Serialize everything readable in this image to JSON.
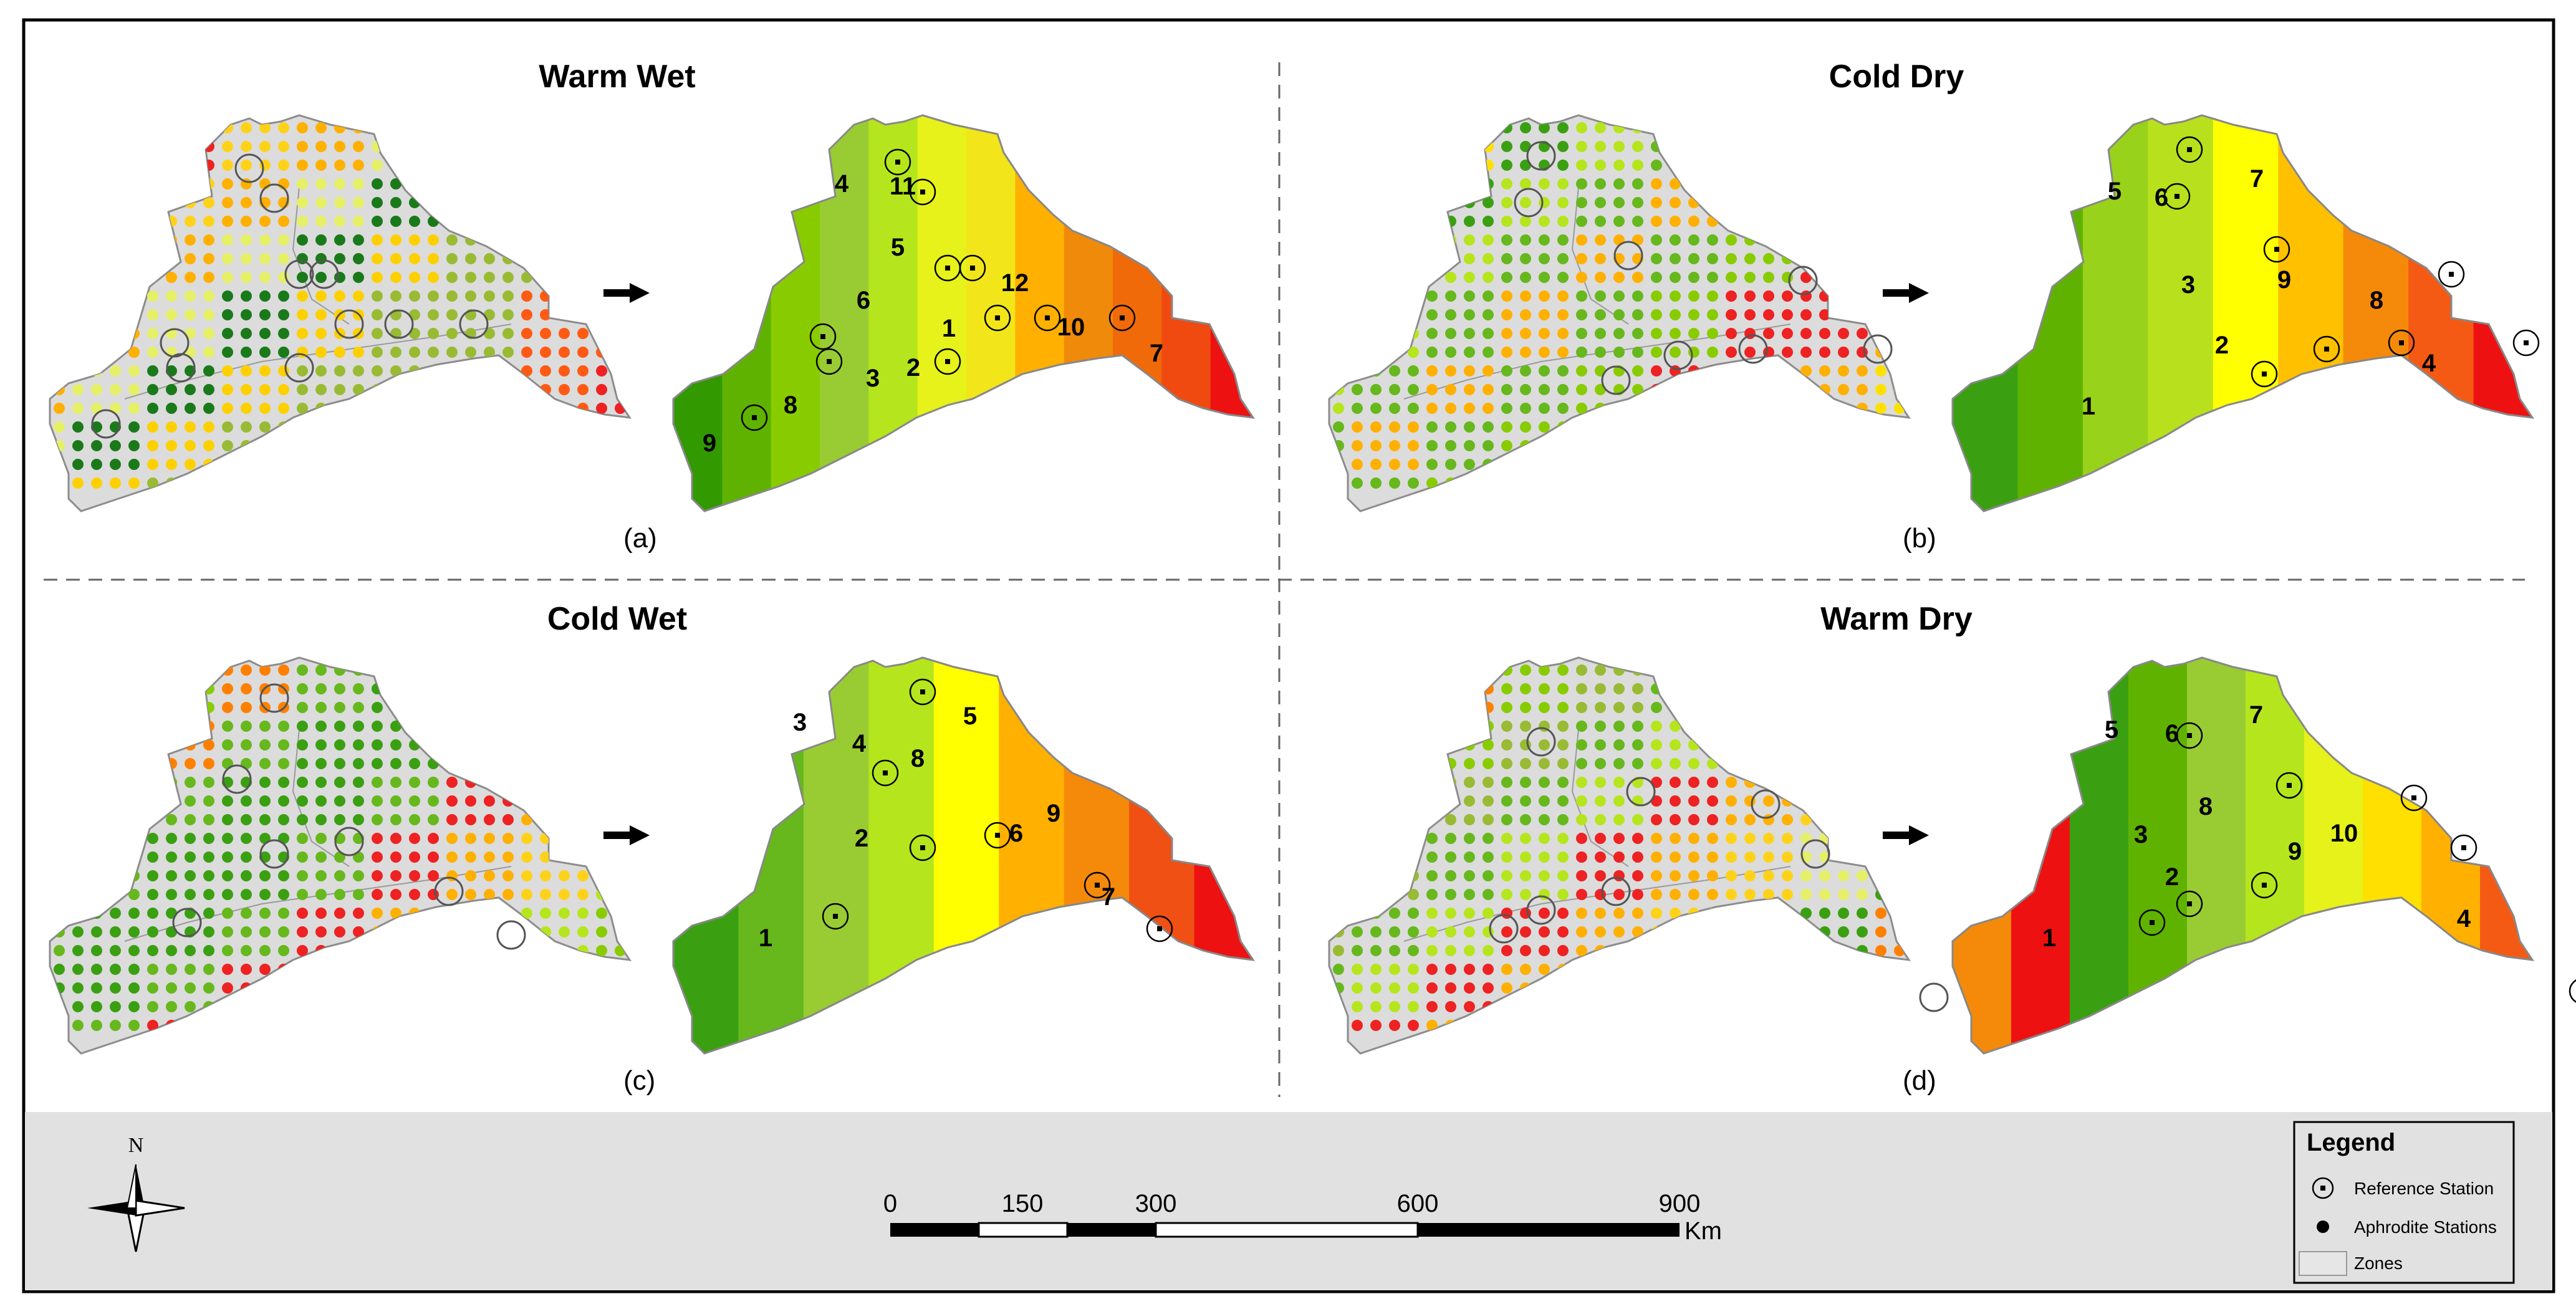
{
  "panels": [
    {
      "id": "a",
      "title": "Warm Wet",
      "label": "(a)",
      "zones": [
        {
          "n": "1",
          "color": "#339900"
        },
        {
          "n": "2",
          "color": "#5fb300"
        },
        {
          "n": "3",
          "color": "#88cc00"
        },
        {
          "n": "4",
          "color": "#99cc33"
        },
        {
          "n": "5",
          "color": "#b5e61d"
        },
        {
          "n": "6",
          "color": "#e6f21a"
        },
        {
          "n": "7",
          "color": "#f2e61a"
        },
        {
          "n": "8",
          "color": "#ffb000"
        },
        {
          "n": "9",
          "color": "#f08a0a"
        },
        {
          "n": "10",
          "color": "#f06a0a"
        },
        {
          "n": "11",
          "color": "#f04a10"
        },
        {
          "n": "12",
          "color": "#ee1111"
        }
      ]
    },
    {
      "id": "b",
      "title": "Cold Dry",
      "label": "(b)",
      "zones": [
        {
          "n": "1",
          "color": "#3aa012"
        },
        {
          "n": "2",
          "color": "#5fb300"
        },
        {
          "n": "3",
          "color": "#99d21a"
        },
        {
          "n": "4",
          "color": "#b9e01d"
        },
        {
          "n": "5",
          "color": "#ffff00"
        },
        {
          "n": "6",
          "color": "#ffc000"
        },
        {
          "n": "7",
          "color": "#f58a0a"
        },
        {
          "n": "8",
          "color": "#f55a14"
        },
        {
          "n": "9",
          "color": "#ee1111"
        }
      ]
    },
    {
      "id": "c",
      "title": "Cold Wet",
      "label": "(c)",
      "zones": [
        {
          "n": "1",
          "color": "#3aa012"
        },
        {
          "n": "2",
          "color": "#66b81c"
        },
        {
          "n": "3",
          "color": "#99cc33"
        },
        {
          "n": "4",
          "color": "#b5e61d"
        },
        {
          "n": "5",
          "color": "#ffff00"
        },
        {
          "n": "6",
          "color": "#ffb000"
        },
        {
          "n": "7",
          "color": "#f58a0a"
        },
        {
          "n": "8",
          "color": "#f05014"
        },
        {
          "n": "9",
          "color": "#ee1111"
        }
      ]
    },
    {
      "id": "d",
      "title": "Warm Dry",
      "label": "(d)",
      "zones": [
        {
          "n": "1",
          "color": "#f58a0a"
        },
        {
          "n": "2",
          "color": "#ee1111"
        },
        {
          "n": "3",
          "color": "#3aa012"
        },
        {
          "n": "4",
          "color": "#5fb300"
        },
        {
          "n": "5",
          "color": "#99cc33"
        },
        {
          "n": "6",
          "color": "#b5e61d"
        },
        {
          "n": "7",
          "color": "#e6f21a"
        },
        {
          "n": "8",
          "color": "#ffe000"
        },
        {
          "n": "9",
          "color": "#ffb000"
        },
        {
          "n": "10",
          "color": "#f55a14"
        }
      ]
    }
  ],
  "scale_bar": {
    "ticks": [
      "0",
      "150",
      "300",
      "600",
      "900"
    ],
    "unit": "Km"
  },
  "north_arrow": {
    "label": "N"
  },
  "legend": {
    "title": "Legend",
    "items": [
      {
        "label": "Reference Station",
        "icon": "reference-station-icon"
      },
      {
        "label": "Aphrodite Stations",
        "icon": "aphrodite-station-icon"
      },
      {
        "label": "Zones",
        "icon": "zone-swatch-icon"
      }
    ]
  },
  "colors": {
    "basin_fill": "#dcdcdc",
    "basin_border": "#8c8c8c",
    "footer_bg": "#e1e1e1",
    "frame": "#000000"
  }
}
